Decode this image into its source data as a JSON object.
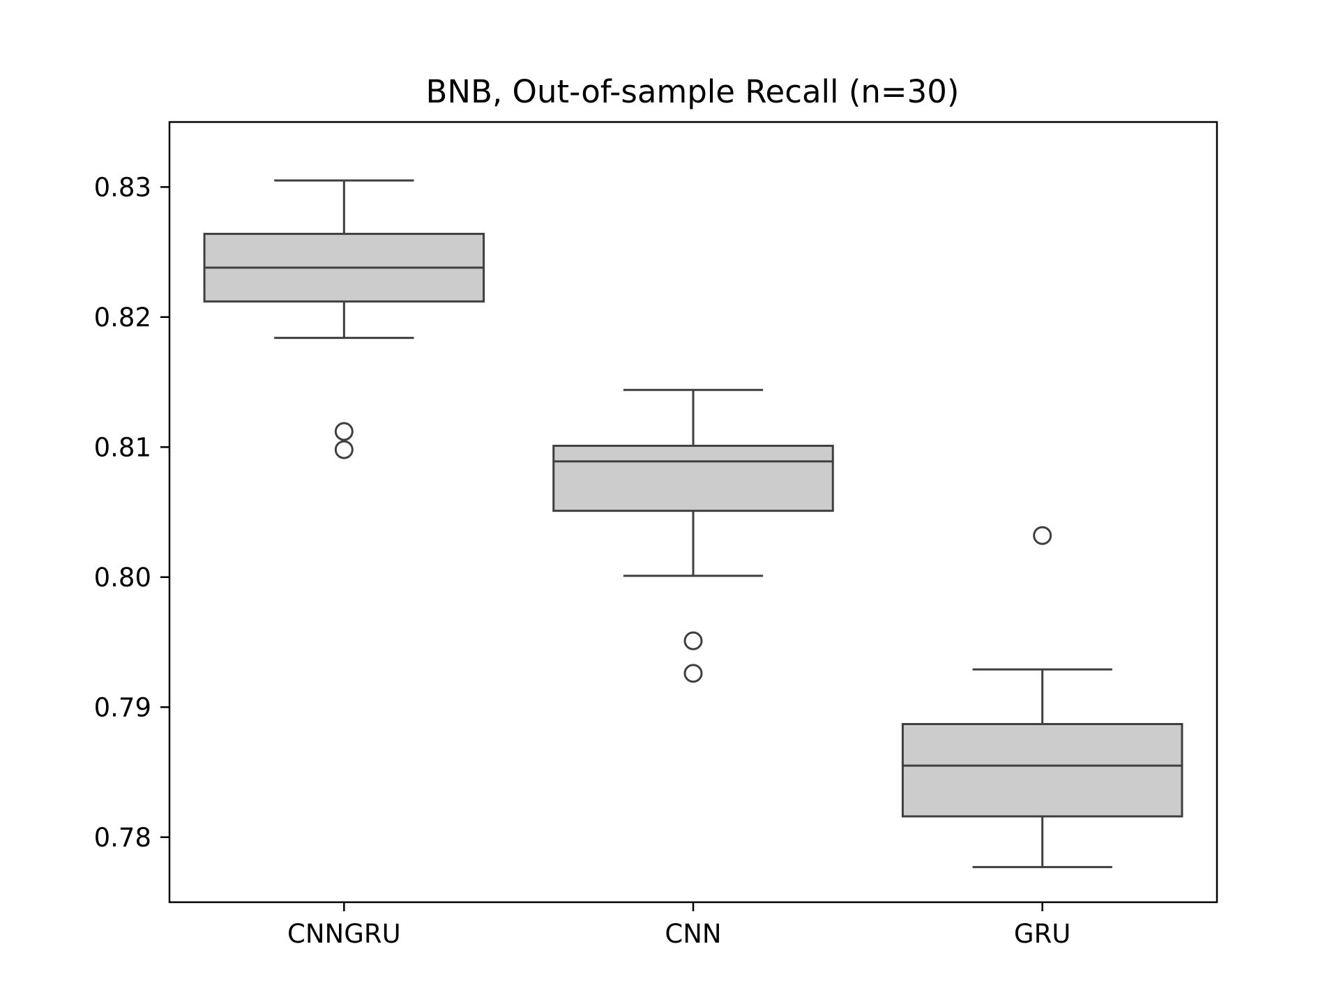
{
  "chart_data": {
    "type": "box",
    "title": "BNB, Out-of-sample Recall (n=30)",
    "xlabel": "",
    "ylabel": "",
    "categories": [
      "CNNGRU",
      "CNN",
      "GRU"
    ],
    "ylim": [
      0.775,
      0.835
    ],
    "yticks": [
      0.78,
      0.79,
      0.8,
      0.81,
      0.82,
      0.83
    ],
    "ytick_labels": [
      "0.78",
      "0.79",
      "0.80",
      "0.81",
      "0.82",
      "0.83"
    ],
    "grid": false,
    "box_fill": "#cccccc",
    "line_color": "#3f3f3f",
    "boxes": [
      {
        "name": "CNNGRU",
        "whisker_low": 0.8184,
        "q1": 0.8212,
        "median": 0.8238,
        "q3": 0.8264,
        "whisker_high": 0.8305,
        "outliers": [
          0.8112,
          0.8098
        ]
      },
      {
        "name": "CNN",
        "whisker_low": 0.8001,
        "q1": 0.8051,
        "median": 0.8089,
        "q3": 0.8101,
        "whisker_high": 0.8144,
        "outliers": [
          0.7951,
          0.7926
        ]
      },
      {
        "name": "GRU",
        "whisker_low": 0.7777,
        "q1": 0.7816,
        "median": 0.7855,
        "q3": 0.7887,
        "whisker_high": 0.7929,
        "outliers": [
          0.8032
        ]
      }
    ]
  }
}
